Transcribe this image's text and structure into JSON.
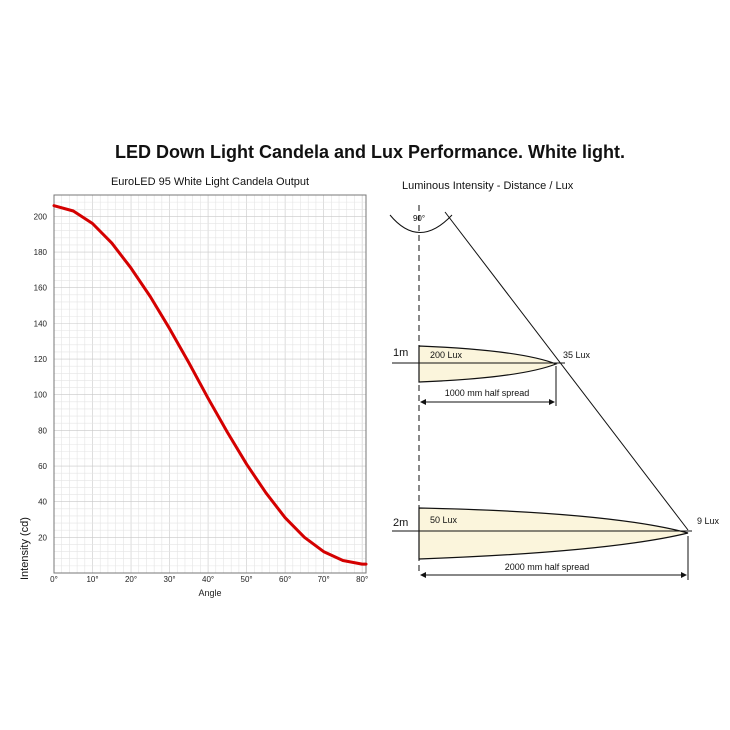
{
  "title": "LED Down Light Candela and Lux Performance. White light.",
  "chart_data": {
    "type": "line",
    "title": "EuroLED 95 White Light Candela Output",
    "xlabel": "Angle",
    "ylabel": "Intensity (cd)",
    "xlim": [
      0,
      81
    ],
    "ylim": [
      0,
      212
    ],
    "x_ticks": [
      0,
      10,
      20,
      30,
      40,
      50,
      60,
      70,
      80
    ],
    "x_tick_labels": [
      "0°",
      "10°",
      "20°",
      "30°",
      "40°",
      "50°",
      "60°",
      "70°",
      "80°"
    ],
    "y_ticks": [
      20,
      40,
      60,
      80,
      100,
      120,
      140,
      160,
      180,
      200
    ],
    "grid": true,
    "series_color": "#d40000",
    "series": [
      {
        "x": [
          0,
          5,
          10,
          15,
          20,
          25,
          30,
          35,
          40,
          45,
          50,
          55,
          60,
          65,
          70,
          75,
          80,
          81
        ],
        "y": [
          206,
          203,
          196,
          185,
          171,
          155,
          137,
          118,
          98,
          79,
          61,
          45,
          31,
          20,
          12,
          7,
          5,
          5
        ]
      }
    ]
  },
  "diagram": {
    "title": "Luminous Intensity - Distance / Lux",
    "beam_angle": "90°",
    "levels": [
      {
        "distance": "1m",
        "center_lux": "200 Lux",
        "edge_lux": "35 Lux",
        "spread": "1000 mm half spread"
      },
      {
        "distance": "2m",
        "center_lux": "50 Lux",
        "edge_lux": "9 Lux",
        "spread": "2000 mm half spread"
      }
    ],
    "fill_color": "#fbf5dc"
  }
}
